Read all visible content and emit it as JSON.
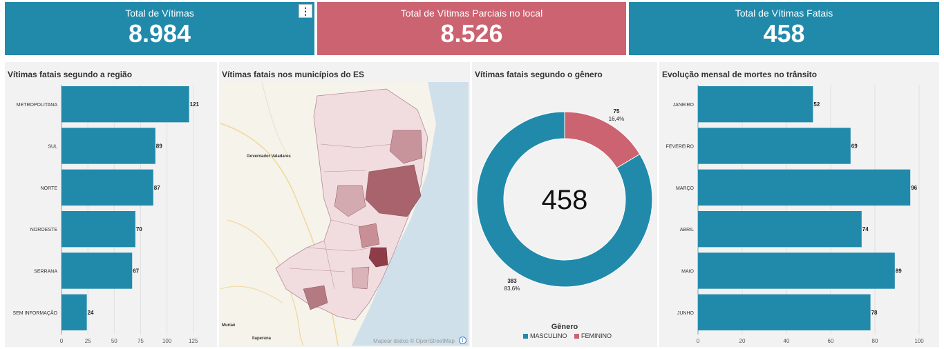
{
  "kpis": {
    "total": {
      "title": "Total de Vítimas",
      "value": "8.984"
    },
    "partial": {
      "title": "Total de Vítimas Parciais no local",
      "value": "8.526"
    },
    "fatal": {
      "title": "Total de Vítimas Fatais",
      "value": "458"
    },
    "menu_label": "⋮"
  },
  "colors": {
    "teal": "#218aab",
    "rose": "#cc6371",
    "panel": "#f2f2f2"
  },
  "map": {
    "title": "Vítimas fatais nos municípios do ES",
    "credit": "Mapear dados © OpenStreetMap",
    "info_label": "i",
    "cities": [
      "Governador Valadares",
      "Muriaé",
      "Itaperuna"
    ]
  },
  "chart_data": [
    {
      "type": "bar",
      "orientation": "horizontal",
      "title": "Vítimas fatais segundo a região",
      "categories": [
        "METROPOLITANA",
        "SUL",
        "NORTE",
        "NOROESTE",
        "SERRANA",
        "SEM INFORMAÇÃO"
      ],
      "values": [
        121,
        89,
        87,
        70,
        67,
        24
      ],
      "xlim": [
        0,
        135
      ],
      "xticks": [
        0,
        25,
        50,
        75,
        100,
        125
      ],
      "grid": true
    },
    {
      "type": "pie",
      "donut": true,
      "title": "Vítimas fatais segundo o gênero",
      "center_label": "458",
      "legend_title": "Gênero",
      "legend_position": "bottom",
      "slices": [
        {
          "name": "MASCULINO",
          "value": 383,
          "pct": "83,6%",
          "color": "#218aab"
        },
        {
          "name": "FEMININO",
          "value": 75,
          "pct": "16,4%",
          "color": "#cc6371"
        }
      ]
    },
    {
      "type": "bar",
      "orientation": "horizontal",
      "title": "Evolução mensal de mortes no trânsito",
      "categories": [
        "JANEIRO",
        "FEVEREIRO",
        "MARÇO",
        "ABRIL",
        "MAIO",
        "JUNHO"
      ],
      "values": [
        52,
        69,
        96,
        74,
        89,
        78
      ],
      "xlim": [
        0,
        100
      ],
      "xticks": [
        0,
        20,
        40,
        60,
        80,
        100
      ],
      "grid": true
    }
  ]
}
